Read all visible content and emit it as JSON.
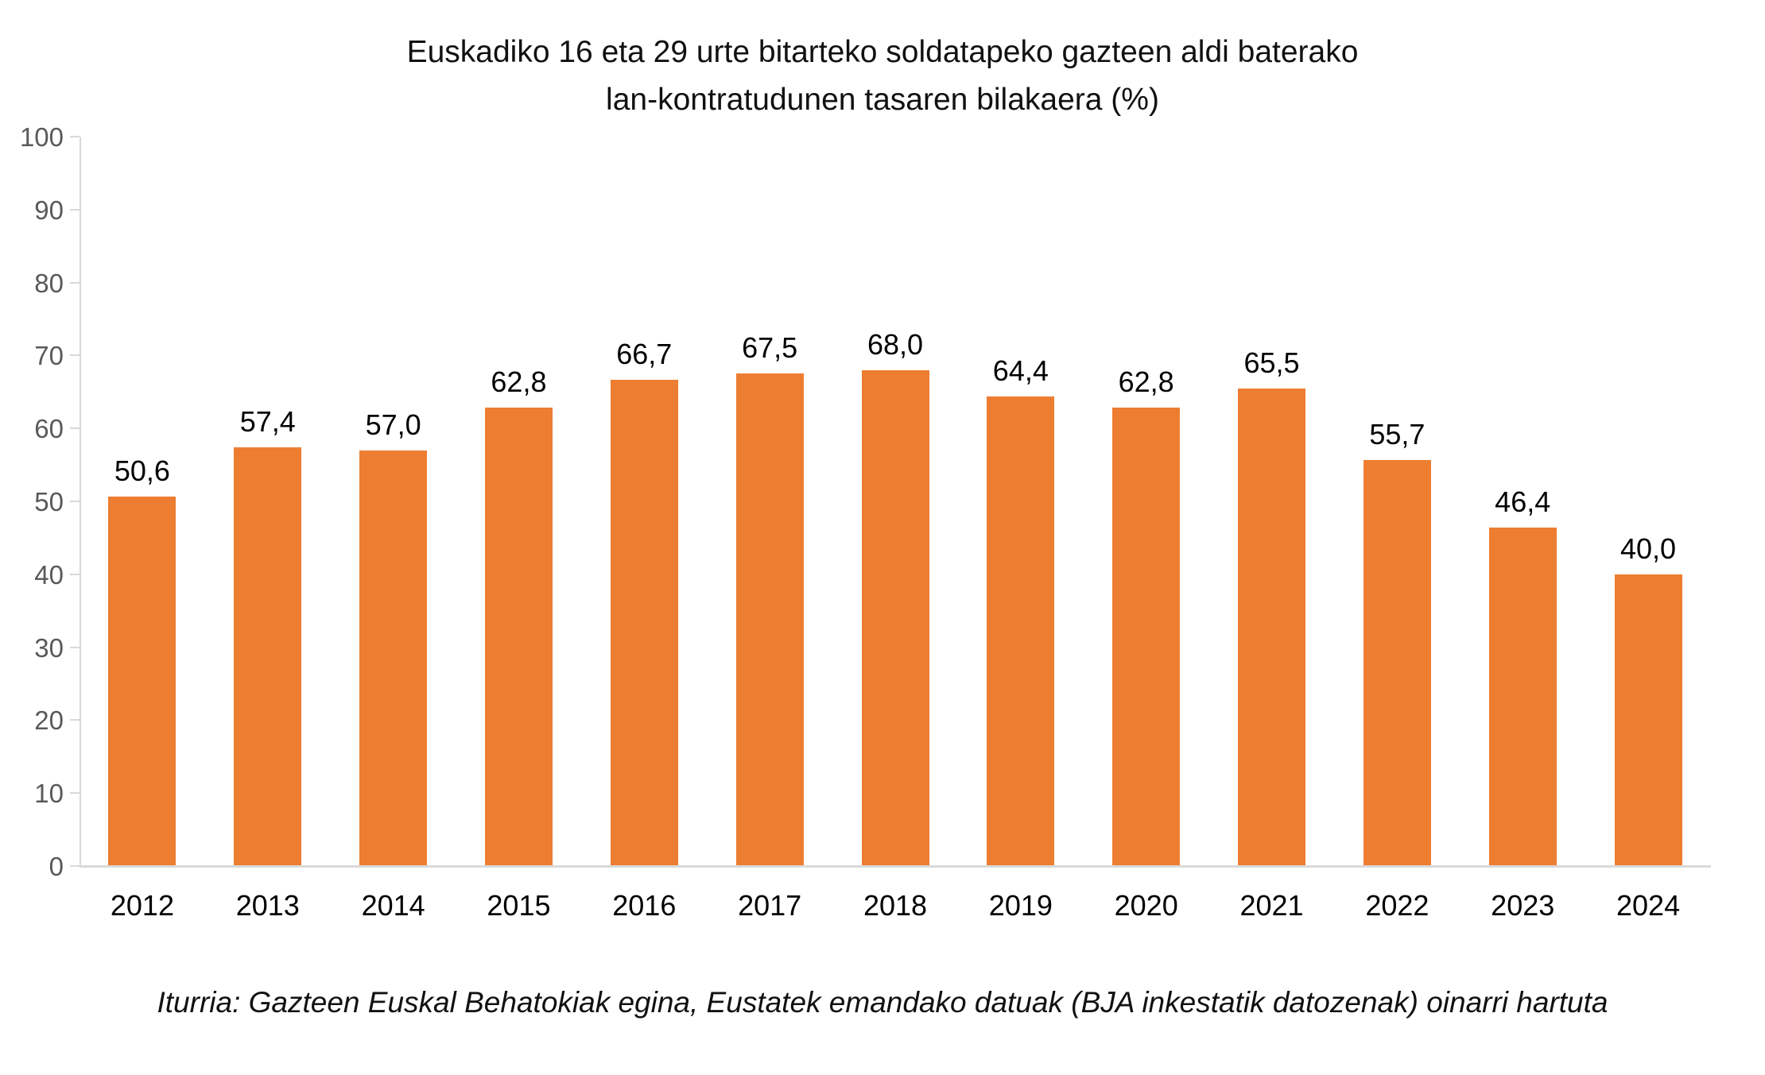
{
  "chart_data": {
    "type": "bar",
    "title": "Euskadiko 16 eta 29 urte bitarteko soldatapeko gazteen aldi baterako lan-kontratudunen tasaren bilakaera (%)",
    "title_line1": "Euskadiko 16 eta 29 urte bitarteko soldatapeko gazteen aldi baterako",
    "title_line2": "lan-kontratudunen tasaren bilakaera (%)",
    "categories": [
      "2012",
      "2013",
      "2014",
      "2015",
      "2016",
      "2017",
      "2018",
      "2019",
      "2020",
      "2021",
      "2022",
      "2023",
      "2024"
    ],
    "values": [
      50.6,
      57.4,
      57.0,
      62.8,
      66.7,
      67.5,
      68.0,
      64.4,
      62.8,
      65.5,
      55.7,
      46.4,
      40.0
    ],
    "value_labels": [
      "50,6",
      "57,4",
      "57,0",
      "62,8",
      "66,7",
      "67,5",
      "68,0",
      "64,4",
      "62,8",
      "65,5",
      "55,7",
      "46,4",
      "40,0"
    ],
    "xlabel": "",
    "ylabel": "",
    "ylim": [
      0,
      100
    ],
    "y_ticks": [
      0,
      10,
      20,
      30,
      40,
      50,
      60,
      70,
      80,
      90,
      100
    ],
    "grid": false,
    "legend": "none",
    "source": "Iturria: Gazteen Euskal Behatokiak egina, Eustatek emandako datuak (BJA inkestatik datozenak) oinarri hartuta",
    "colors": {
      "bar": "#ED7D31",
      "axis_line": "#D9D9D9",
      "y_tick_label": "#595959",
      "x_tick_label": "#000000",
      "data_label": "#000000",
      "title": "#111111"
    }
  }
}
